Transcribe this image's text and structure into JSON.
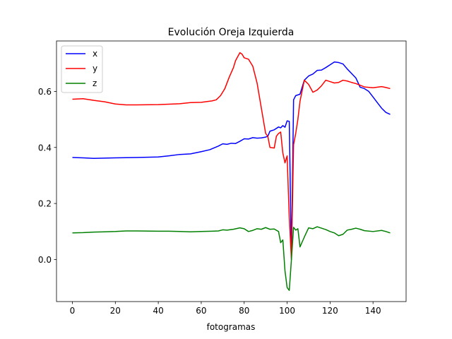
{
  "chart_data": {
    "type": "line",
    "title": "Evolución Oreja Izquierda",
    "xlabel": "fotogramas",
    "ylabel": "",
    "xlim": [
      -7.4,
      155.4
    ],
    "ylim": [
      -0.15,
      0.78
    ],
    "xticks": [
      0,
      20,
      40,
      60,
      80,
      100,
      120,
      140
    ],
    "yticks": [
      0.0,
      0.2,
      0.4,
      0.6
    ],
    "ytick_labels": [
      "0.0",
      "0.2",
      "0.4",
      "0.6"
    ],
    "grid": false,
    "legend_position": "top-left",
    "series": [
      {
        "name": "x",
        "color": "#0000ff",
        "points": [
          [
            0,
            0.364
          ],
          [
            5,
            0.363
          ],
          [
            10,
            0.361
          ],
          [
            20,
            0.363
          ],
          [
            30,
            0.364
          ],
          [
            40,
            0.366
          ],
          [
            45,
            0.37
          ],
          [
            50,
            0.375
          ],
          [
            55,
            0.377
          ],
          [
            60,
            0.385
          ],
          [
            64,
            0.392
          ],
          [
            68,
            0.405
          ],
          [
            70,
            0.413
          ],
          [
            72,
            0.411
          ],
          [
            74,
            0.415
          ],
          [
            76,
            0.414
          ],
          [
            78,
            0.422
          ],
          [
            80,
            0.431
          ],
          [
            82,
            0.43
          ],
          [
            84,
            0.435
          ],
          [
            86,
            0.433
          ],
          [
            88,
            0.434
          ],
          [
            90,
            0.437
          ],
          [
            91,
            0.44
          ],
          [
            92,
            0.458
          ],
          [
            94,
            0.463
          ],
          [
            96,
            0.473
          ],
          [
            97,
            0.47
          ],
          [
            98,
            0.478
          ],
          [
            99,
            0.472
          ],
          [
            100,
            0.495
          ],
          [
            101,
            0.493
          ],
          [
            102,
            0.0
          ],
          [
            103,
            0.57
          ],
          [
            104,
            0.585
          ],
          [
            106,
            0.59
          ],
          [
            108,
            0.64
          ],
          [
            110,
            0.655
          ],
          [
            112,
            0.662
          ],
          [
            114,
            0.675
          ],
          [
            116,
            0.676
          ],
          [
            118,
            0.685
          ],
          [
            120,
            0.695
          ],
          [
            122,
            0.705
          ],
          [
            124,
            0.703
          ],
          [
            126,
            0.698
          ],
          [
            128,
            0.68
          ],
          [
            130,
            0.664
          ],
          [
            132,
            0.648
          ],
          [
            134,
            0.615
          ],
          [
            136,
            0.61
          ],
          [
            138,
            0.6
          ],
          [
            140,
            0.58
          ],
          [
            142,
            0.56
          ],
          [
            144,
            0.54
          ],
          [
            146,
            0.525
          ],
          [
            148,
            0.518
          ]
        ]
      },
      {
        "name": "y",
        "color": "#ff0000",
        "points": [
          [
            0,
            0.572
          ],
          [
            5,
            0.574
          ],
          [
            10,
            0.568
          ],
          [
            15,
            0.563
          ],
          [
            20,
            0.555
          ],
          [
            25,
            0.552
          ],
          [
            30,
            0.552
          ],
          [
            40,
            0.553
          ],
          [
            50,
            0.556
          ],
          [
            55,
            0.56
          ],
          [
            60,
            0.561
          ],
          [
            65,
            0.566
          ],
          [
            67,
            0.57
          ],
          [
            69,
            0.585
          ],
          [
            71,
            0.61
          ],
          [
            73,
            0.65
          ],
          [
            75,
            0.685
          ],
          [
            76,
            0.71
          ],
          [
            78,
            0.738
          ],
          [
            79,
            0.733
          ],
          [
            80,
            0.72
          ],
          [
            82,
            0.715
          ],
          [
            84,
            0.69
          ],
          [
            86,
            0.63
          ],
          [
            88,
            0.54
          ],
          [
            90,
            0.45
          ],
          [
            91,
            0.44
          ],
          [
            92,
            0.4
          ],
          [
            94,
            0.398
          ],
          [
            95,
            0.44
          ],
          [
            96,
            0.45
          ],
          [
            97,
            0.455
          ],
          [
            98,
            0.38
          ],
          [
            99,
            0.345
          ],
          [
            100,
            0.37
          ],
          [
            101,
            0.15
          ],
          [
            102,
            0.0
          ],
          [
            103,
            0.41
          ],
          [
            104,
            0.45
          ],
          [
            105,
            0.5
          ],
          [
            106,
            0.565
          ],
          [
            108,
            0.64
          ],
          [
            110,
            0.625
          ],
          [
            112,
            0.597
          ],
          [
            114,
            0.605
          ],
          [
            116,
            0.62
          ],
          [
            118,
            0.64
          ],
          [
            120,
            0.635
          ],
          [
            122,
            0.63
          ],
          [
            124,
            0.632
          ],
          [
            126,
            0.64
          ],
          [
            128,
            0.637
          ],
          [
            130,
            0.632
          ],
          [
            132,
            0.628
          ],
          [
            134,
            0.622
          ],
          [
            136,
            0.616
          ],
          [
            140,
            0.613
          ],
          [
            144,
            0.617
          ],
          [
            146,
            0.614
          ],
          [
            148,
            0.61
          ]
        ]
      },
      {
        "name": "z",
        "color": "#008000",
        "points": [
          [
            0,
            0.095
          ],
          [
            5,
            0.096
          ],
          [
            10,
            0.098
          ],
          [
            15,
            0.099
          ],
          [
            20,
            0.1
          ],
          [
            25,
            0.102
          ],
          [
            30,
            0.102
          ],
          [
            40,
            0.101
          ],
          [
            45,
            0.101
          ],
          [
            50,
            0.1
          ],
          [
            55,
            0.099
          ],
          [
            60,
            0.1
          ],
          [
            65,
            0.101
          ],
          [
            68,
            0.102
          ],
          [
            70,
            0.106
          ],
          [
            72,
            0.105
          ],
          [
            75,
            0.108
          ],
          [
            78,
            0.113
          ],
          [
            80,
            0.11
          ],
          [
            82,
            0.1
          ],
          [
            84,
            0.104
          ],
          [
            86,
            0.11
          ],
          [
            88,
            0.108
          ],
          [
            90,
            0.114
          ],
          [
            92,
            0.108
          ],
          [
            94,
            0.109
          ],
          [
            96,
            0.1
          ],
          [
            97,
            0.06
          ],
          [
            98,
            0.07
          ],
          [
            99,
            -0.04
          ],
          [
            100,
            -0.1
          ],
          [
            101,
            -0.11
          ],
          [
            102,
            0.0
          ],
          [
            103,
            0.115
          ],
          [
            104,
            0.105
          ],
          [
            105,
            0.11
          ],
          [
            106,
            0.045
          ],
          [
            108,
            0.08
          ],
          [
            110,
            0.113
          ],
          [
            112,
            0.11
          ],
          [
            114,
            0.117
          ],
          [
            116,
            0.112
          ],
          [
            118,
            0.107
          ],
          [
            120,
            0.1
          ],
          [
            122,
            0.095
          ],
          [
            124,
            0.085
          ],
          [
            126,
            0.09
          ],
          [
            128,
            0.105
          ],
          [
            130,
            0.108
          ],
          [
            132,
            0.112
          ],
          [
            134,
            0.108
          ],
          [
            136,
            0.103
          ],
          [
            140,
            0.1
          ],
          [
            144,
            0.104
          ],
          [
            146,
            0.1
          ],
          [
            148,
            0.095
          ]
        ]
      }
    ]
  }
}
